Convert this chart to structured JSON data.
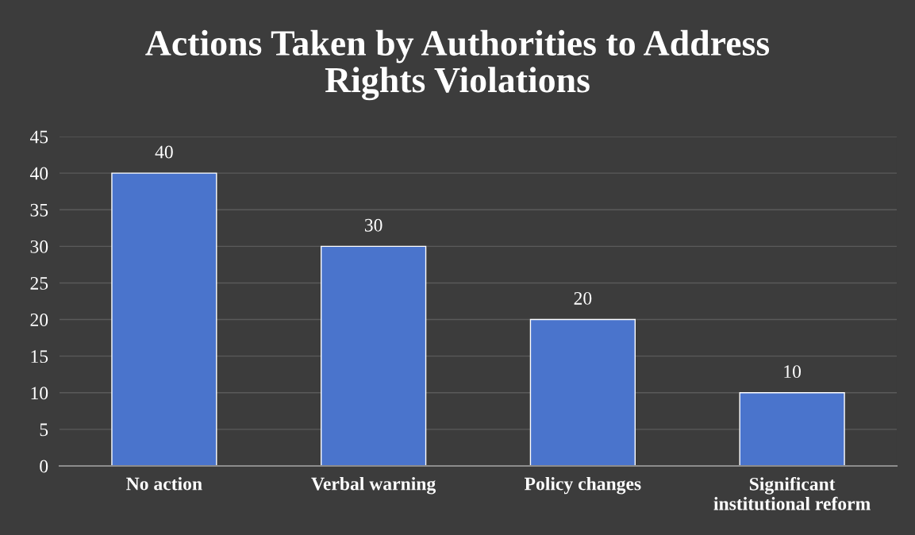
{
  "chart_data": {
    "type": "bar",
    "title": "Actions Taken by Authorities to Address\nRights Violations",
    "categories": [
      "No action",
      "Verbal warning",
      "Policy changes",
      "Significant\ninstitutional reform"
    ],
    "values": [
      40,
      30,
      20,
      10
    ],
    "color": "#4a74cc",
    "ylim": [
      0,
      45
    ],
    "yticks": [
      0,
      5,
      10,
      15,
      20,
      25,
      30,
      35,
      40,
      45
    ],
    "grid": "y",
    "data_labels": true
  }
}
